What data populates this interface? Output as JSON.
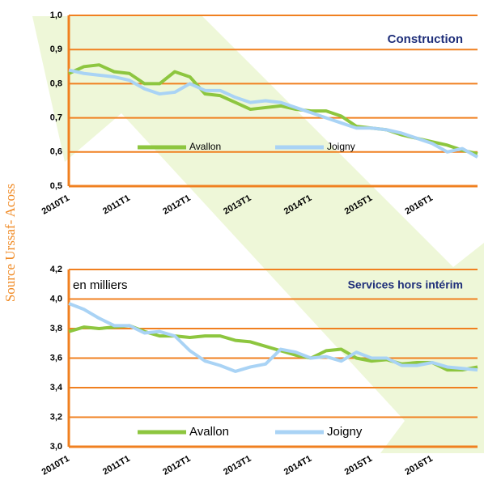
{
  "source": "Source Urssaf- Acoss",
  "chart_data": [
    {
      "type": "line",
      "title": "Construction",
      "categories": [
        "2010T1",
        null,
        null,
        null,
        "2011T1",
        null,
        null,
        null,
        "2012T1",
        null,
        null,
        null,
        "2013T1",
        null,
        null,
        null,
        "2014T1",
        null,
        null,
        null,
        "2015T1",
        null,
        null,
        null,
        "2016T1",
        null,
        null,
        null
      ],
      "series": [
        {
          "name": "Avallon",
          "color": "#8dc63f",
          "values": [
            0.83,
            0.85,
            0.855,
            0.835,
            0.83,
            0.8,
            0.8,
            0.835,
            0.82,
            0.77,
            0.765,
            0.745,
            0.725,
            0.73,
            0.735,
            0.725,
            0.72,
            0.72,
            0.705,
            0.675,
            0.67,
            0.665,
            0.65,
            0.64,
            0.63,
            0.62,
            0.605,
            0.595
          ]
        },
        {
          "name": "Joigny",
          "color": "#a9d3f5",
          "values": [
            0.84,
            0.83,
            0.825,
            0.82,
            0.81,
            0.785,
            0.77,
            0.775,
            0.8,
            0.78,
            0.78,
            0.76,
            0.745,
            0.75,
            0.745,
            0.73,
            0.715,
            0.7,
            0.685,
            0.67,
            0.67,
            0.665,
            0.655,
            0.64,
            0.625,
            0.6,
            0.61,
            0.585
          ]
        }
      ],
      "ylim": [
        0.5,
        1.0
      ],
      "yticks": [
        {
          "value": 0.5,
          "label": "0,5"
        },
        {
          "value": 0.6,
          "label": "0,6"
        },
        {
          "value": 0.7,
          "label": "0,7"
        },
        {
          "value": 0.8,
          "label": "0,8"
        },
        {
          "value": 0.9,
          "label": "0,9"
        },
        {
          "value": 1.0,
          "label": "1,0"
        }
      ],
      "grid": true,
      "legend": "bottom"
    },
    {
      "type": "line",
      "title": "Services hors intérim",
      "annotation": "en milliers",
      "categories": [
        "2010T1",
        null,
        null,
        null,
        "2011T1",
        null,
        null,
        null,
        "2012T1",
        null,
        null,
        null,
        "2013T1",
        null,
        null,
        null,
        "2014T1",
        null,
        null,
        null,
        "2015T1",
        null,
        null,
        null,
        "2016T1",
        null,
        null,
        null
      ],
      "series": [
        {
          "name": "Avallon",
          "color": "#8dc63f",
          "values": [
            3.78,
            3.81,
            3.8,
            3.81,
            3.82,
            3.78,
            3.75,
            3.75,
            3.74,
            3.75,
            3.75,
            3.72,
            3.71,
            3.68,
            3.65,
            3.62,
            3.6,
            3.65,
            3.66,
            3.6,
            3.58,
            3.59,
            3.56,
            3.57,
            3.57,
            3.52,
            3.52,
            3.54
          ]
        },
        {
          "name": "Joigny",
          "color": "#a9d3f5",
          "values": [
            3.97,
            3.93,
            3.87,
            3.82,
            3.82,
            3.77,
            3.78,
            3.75,
            3.65,
            3.58,
            3.55,
            3.51,
            3.54,
            3.56,
            3.66,
            3.64,
            3.6,
            3.61,
            3.58,
            3.64,
            3.6,
            3.6,
            3.55,
            3.55,
            3.57,
            3.54,
            3.53,
            3.52
          ]
        }
      ],
      "ylim": [
        3.0,
        4.2
      ],
      "yticks": [
        {
          "value": 3.0,
          "label": "3,0"
        },
        {
          "value": 3.2,
          "label": "3,2"
        },
        {
          "value": 3.4,
          "label": "3,4"
        },
        {
          "value": 3.6,
          "label": "3,6"
        },
        {
          "value": 3.8,
          "label": "3,8"
        },
        {
          "value": 4.0,
          "label": "4,0"
        },
        {
          "value": 4.2,
          "label": "4,2"
        }
      ],
      "grid": true,
      "legend": "bottom"
    }
  ]
}
